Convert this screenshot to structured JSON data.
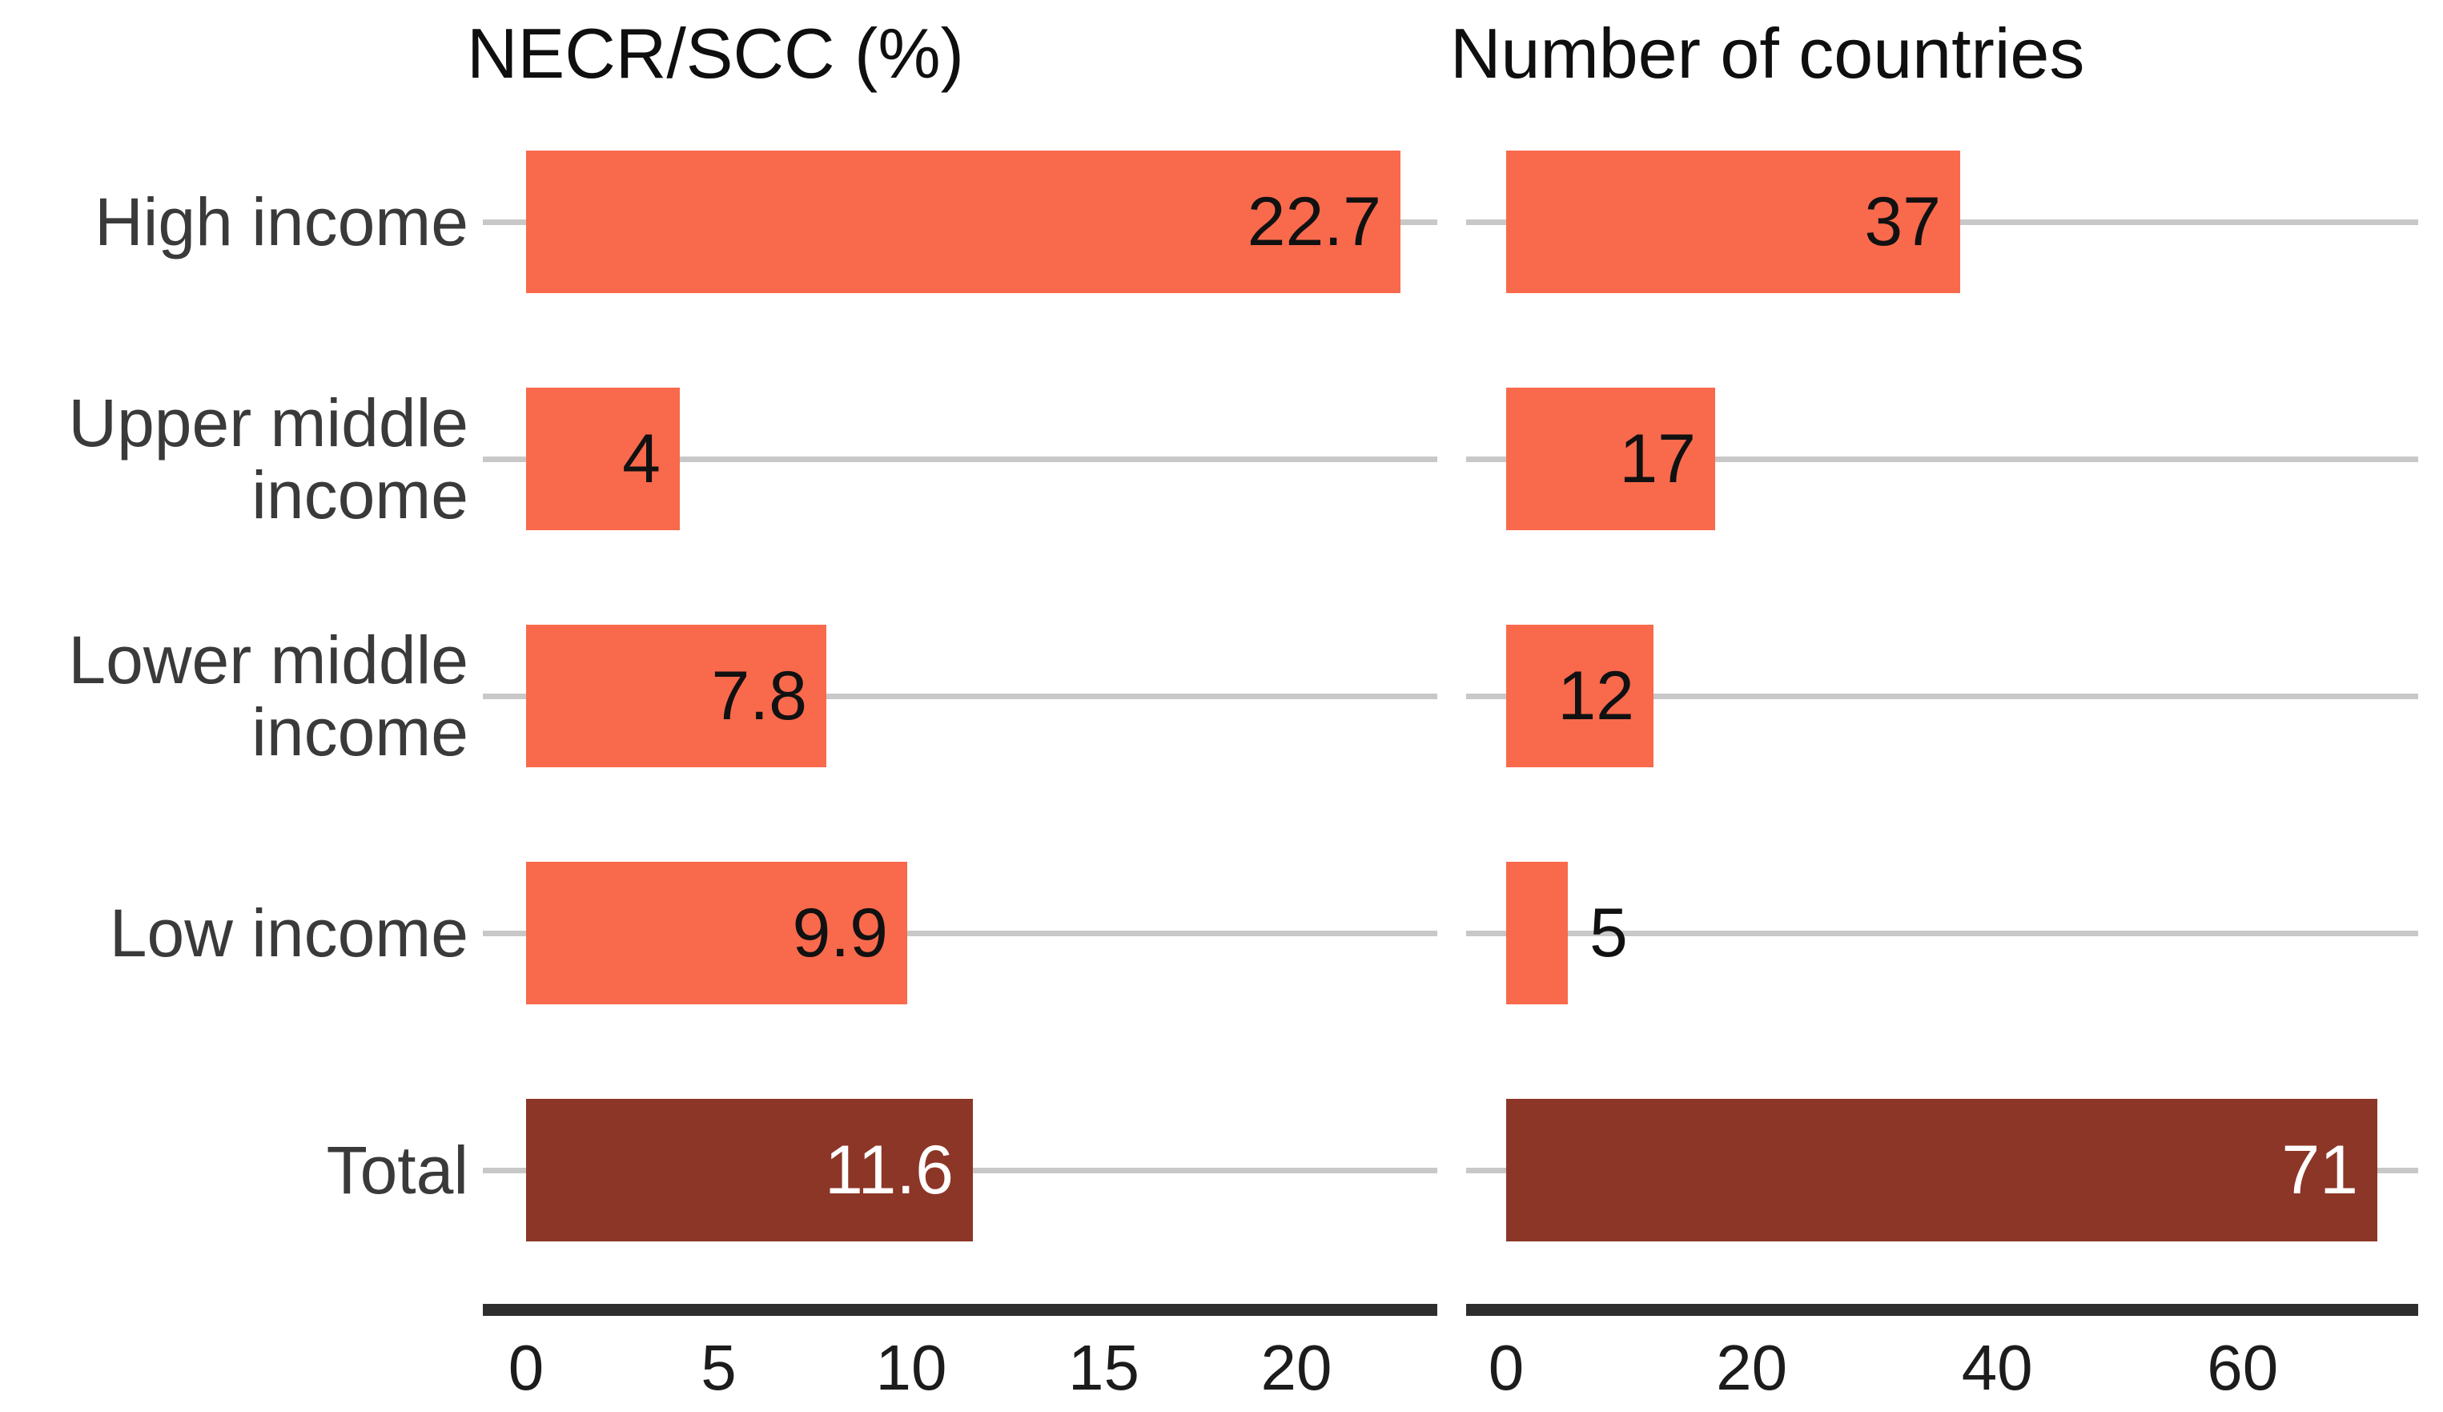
{
  "chart_data": [
    {
      "type": "bar",
      "orientation": "horizontal",
      "title": "NECR/SCC (%)",
      "categories": [
        "High income",
        "Upper middle income",
        "Lower middle income",
        "Low income",
        "Total"
      ],
      "values": [
        22.7,
        4,
        7.8,
        9.9,
        11.6
      ],
      "xticks": [
        0,
        5,
        10,
        15,
        20
      ],
      "xtick_labels": [
        "0",
        "5",
        "10",
        "15",
        "20"
      ],
      "xlim": [
        0,
        23.7
      ],
      "grid": true,
      "legend": false,
      "bars": [
        {
          "category": "High income",
          "value": 22.7,
          "label": "22.7",
          "color": "#F9694C",
          "label_color": "#111111",
          "label_position": "inside"
        },
        {
          "category": "Upper middle income",
          "value": 4,
          "label": "4",
          "color": "#F9694C",
          "label_color": "#111111",
          "label_position": "inside"
        },
        {
          "category": "Lower middle income",
          "value": 7.8,
          "label": "7.8",
          "color": "#F9694C",
          "label_color": "#111111",
          "label_position": "inside"
        },
        {
          "category": "Low income",
          "value": 9.9,
          "label": "9.9",
          "color": "#F9694C",
          "label_color": "#111111",
          "label_position": "inside"
        },
        {
          "category": "Total",
          "value": 11.6,
          "label": "11.6",
          "color": "#8C3627",
          "label_color": "#FFFFFF",
          "label_position": "inside"
        }
      ]
    },
    {
      "type": "bar",
      "orientation": "horizontal",
      "title": "Number of countries",
      "categories": [
        "High income",
        "Upper middle income",
        "Lower middle income",
        "Low income",
        "Total"
      ],
      "values": [
        37,
        17,
        12,
        5,
        71
      ],
      "xticks": [
        0,
        20,
        40,
        60
      ],
      "xtick_labels": [
        "0",
        "20",
        "40",
        "60"
      ],
      "xlim": [
        0,
        74.3
      ],
      "grid": true,
      "legend": false,
      "bars": [
        {
          "category": "High income",
          "value": 37,
          "label": "37",
          "color": "#F9694C",
          "label_color": "#111111",
          "label_position": "inside"
        },
        {
          "category": "Upper middle income",
          "value": 17,
          "label": "17",
          "color": "#F9694C",
          "label_color": "#111111",
          "label_position": "inside"
        },
        {
          "category": "Lower middle income",
          "value": 12,
          "label": "12",
          "color": "#F9694C",
          "label_color": "#111111",
          "label_position": "inside"
        },
        {
          "category": "Low income",
          "value": 5,
          "label": "5",
          "color": "#F9694C",
          "label_color": "#111111",
          "label_position": "outside"
        },
        {
          "category": "Total",
          "value": 71,
          "label": "71",
          "color": "#8C3627",
          "label_color": "#FFFFFF",
          "label_position": "inside"
        }
      ]
    }
  ],
  "category_label_lines": [
    [
      "High income"
    ],
    [
      "Upper middle",
      "income"
    ],
    [
      "Lower middle",
      "income"
    ],
    [
      "Low income"
    ],
    [
      "Total"
    ]
  ],
  "colors": {
    "bar": "#F9694C",
    "total_bar": "#8C3627",
    "grid": "#C8C8C8",
    "axis": "#2E2E2E",
    "title_text": "#0F0F0F",
    "category_text": "#3A3A3A",
    "tick_text": "#1C1C1C",
    "background": "#FFFFFF"
  }
}
